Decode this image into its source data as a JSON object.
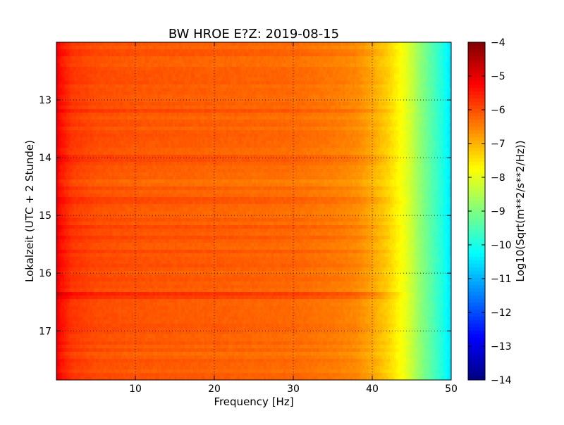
{
  "chart_data": {
    "type": "heatmap",
    "title": "BW HROE E?Z: 2019-08-15",
    "xlabel": "Frequency [Hz]",
    "ylabel": "Lokalzeit (UTC + 2 Stunde)",
    "colorbar_label": "Log10(Sqrt(m**2/s**2/Hz))",
    "xlim": [
      0,
      50
    ],
    "ylim": [
      17.85,
      12.0
    ],
    "x_ticks": [
      10,
      20,
      30,
      40,
      50
    ],
    "y_ticks": [
      13,
      14,
      15,
      16,
      17
    ],
    "color_range": [
      -14,
      -4
    ],
    "colorbar_ticks": [
      -4,
      -5,
      -6,
      -7,
      -8,
      -9,
      -10,
      -11,
      -12,
      -13,
      -14
    ],
    "colormap": "jet",
    "grid": true,
    "grid_style": "dotted",
    "spectrum_profile": {
      "frequency_hz": [
        0,
        0.5,
        2,
        5,
        10,
        20,
        30,
        35,
        38,
        40,
        42,
        43,
        44,
        45,
        46,
        47,
        48,
        49,
        49.5,
        50
      ],
      "log10_amplitude": [
        -5.0,
        -5.4,
        -5.8,
        -6.0,
        -6.1,
        -6.2,
        -6.3,
        -6.45,
        -6.6,
        -6.9,
        -7.3,
        -7.6,
        -7.9,
        -8.3,
        -8.8,
        -9.2,
        -9.6,
        -10.0,
        -10.3,
        -10.5
      ]
    },
    "horizontal_bands": [
      {
        "time_h": 12.18,
        "log10_delta": 0.15
      },
      {
        "time_h": 13.2,
        "log10_delta": 0.25
      },
      {
        "time_h": 14.0,
        "log10_delta": 0.2
      },
      {
        "time_h": 14.45,
        "log10_delta": -0.15
      },
      {
        "time_h": 14.75,
        "log10_delta": 0.2
      },
      {
        "time_h": 15.2,
        "log10_delta": 0.25
      },
      {
        "time_h": 15.38,
        "log10_delta": 0.2
      },
      {
        "time_h": 15.62,
        "log10_delta": 0.2
      },
      {
        "time_h": 15.85,
        "log10_delta": 0.15
      },
      {
        "time_h": 16.1,
        "log10_delta": 0.15
      },
      {
        "time_h": 16.36,
        "log10_delta": 0.45
      },
      {
        "time_h": 16.42,
        "log10_delta": 0.3
      },
      {
        "time_h": 16.95,
        "log10_delta": 0.15
      },
      {
        "time_h": 17.4,
        "log10_delta": -0.1
      }
    ]
  }
}
